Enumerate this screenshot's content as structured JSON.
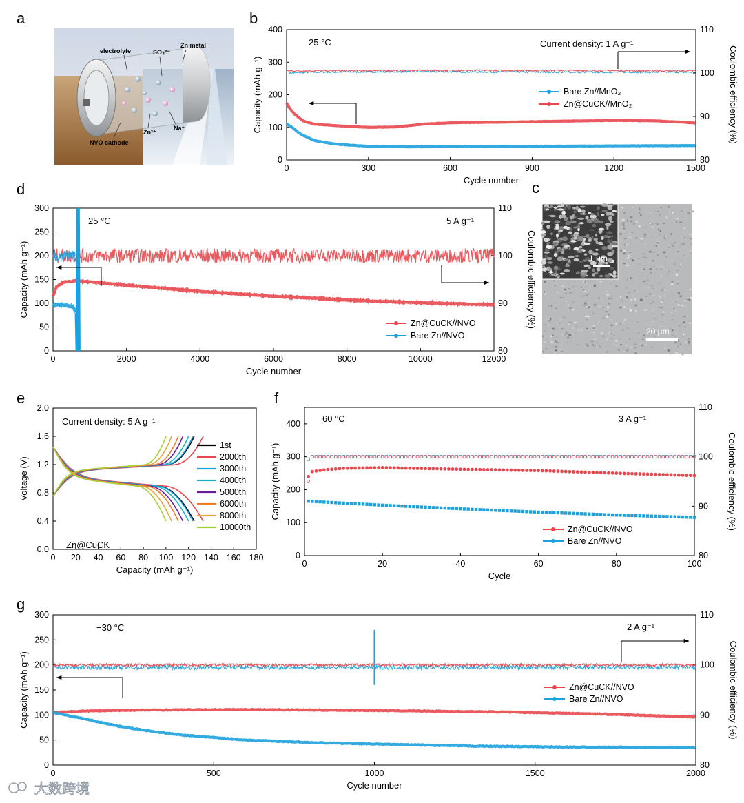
{
  "figure": {
    "panel_labels": [
      "a",
      "b",
      "c",
      "d",
      "e",
      "f",
      "g"
    ],
    "watermark": "大数跨境",
    "panel_a": {
      "labels": [
        "electrolyte",
        "SO₄²⁻",
        "Zn metal",
        "NVO cathode",
        "Zn²⁺",
        "Na⁺"
      ]
    },
    "panel_c": {
      "inset_scale": "1 μm",
      "main_scale": "20 μm"
    }
  },
  "colors": {
    "red": "#e8474d",
    "blue": "#1da1dc",
    "black": "#000000"
  },
  "chart_data": [
    {
      "id": "b",
      "type": "line",
      "panel": "b",
      "xlabel": "Cycle number",
      "ylabel": "Capacity (mAh g⁻¹)",
      "y2label": "Coulombic efficiency (%)",
      "xlim": [
        0,
        1500
      ],
      "ylim": [
        0,
        400
      ],
      "y2lim": [
        80,
        110
      ],
      "xticks": [
        0,
        300,
        600,
        900,
        1200,
        1500
      ],
      "yticks": [
        0,
        100,
        200,
        300,
        400
      ],
      "y2ticks": [
        80,
        90,
        100,
        110
      ],
      "annotations": [
        "25 °C",
        "Current density: 1 A g⁻¹"
      ],
      "legend": [
        "Bare Zn//MnO₂",
        "Zn@CuCK//MnO₂"
      ],
      "series": [
        {
          "name": "Bare Zn//MnO₂",
          "color": "blue",
          "axis": "left",
          "points": [
            [
              0,
              110
            ],
            [
              20,
              100
            ],
            [
              50,
              80
            ],
            [
              100,
              60
            ],
            [
              150,
              52
            ],
            [
              200,
              47
            ],
            [
              300,
              42
            ],
            [
              450,
              40
            ],
            [
              600,
              41
            ],
            [
              900,
              42
            ],
            [
              1200,
              43
            ],
            [
              1500,
              44
            ]
          ]
        },
        {
          "name": "Zn@CuCK//MnO₂",
          "color": "red",
          "axis": "left",
          "points": [
            [
              0,
              175
            ],
            [
              10,
              160
            ],
            [
              30,
              140
            ],
            [
              60,
              120
            ],
            [
              100,
              110
            ],
            [
              200,
              104
            ],
            [
              300,
              100
            ],
            [
              400,
              101
            ],
            [
              500,
              110
            ],
            [
              600,
              114
            ],
            [
              800,
              116
            ],
            [
              1000,
              119
            ],
            [
              1200,
              121
            ],
            [
              1350,
              120
            ],
            [
              1450,
              116
            ],
            [
              1500,
              113
            ]
          ]
        },
        {
          "name": "Bare Zn//MnO₂ CE",
          "color": "blue",
          "axis": "right",
          "points": [
            [
              10,
              100
            ],
            [
              100,
              100.2
            ],
            [
              500,
              100.3
            ],
            [
              1000,
              100.2
            ],
            [
              1500,
              100.2
            ]
          ]
        },
        {
          "name": "Zn@CuCK//MnO₂ CE",
          "color": "red",
          "axis": "right",
          "points": [
            [
              0,
              100.5
            ],
            [
              500,
              100.6
            ],
            [
              1000,
              100.6
            ],
            [
              1500,
              100.5
            ]
          ]
        }
      ]
    },
    {
      "id": "d",
      "type": "line",
      "panel": "d",
      "xlabel": "Cycle number",
      "ylabel": "Capacity (mAh g⁻¹)",
      "y2label": "Coulombic efficiency (%)",
      "xlim": [
        0,
        12000
      ],
      "ylim": [
        0,
        300
      ],
      "y2lim": [
        80,
        110
      ],
      "xticks": [
        0,
        2000,
        4000,
        6000,
        8000,
        10000,
        12000
      ],
      "yticks": [
        0,
        50,
        100,
        150,
        200,
        250,
        300
      ],
      "y2ticks": [
        80,
        90,
        100,
        110
      ],
      "annotations": [
        "25 °C",
        "5 A g⁻¹"
      ],
      "legend": [
        "Zn@CuCK//NVO",
        "Bare Zn//NVO"
      ],
      "series": [
        {
          "name": "Zn@CuCK//NVO",
          "color": "red",
          "axis": "left",
          "points": [
            [
              0,
              115
            ],
            [
              100,
              135
            ],
            [
              300,
              145
            ],
            [
              600,
              147
            ],
            [
              1000,
              145
            ],
            [
              2000,
              138
            ],
            [
              4000,
              125
            ],
            [
              6000,
              115
            ],
            [
              8000,
              107
            ],
            [
              10000,
              101
            ],
            [
              12000,
              97
            ]
          ]
        },
        {
          "name": "Bare Zn//NVO",
          "color": "blue",
          "axis": "left",
          "points": [
            [
              0,
              97
            ],
            [
              200,
              97
            ],
            [
              400,
              95
            ],
            [
              550,
              92
            ],
            [
              620,
              80
            ]
          ]
        },
        {
          "name": "Zn@CuCK//NVO CE",
          "color": "red",
          "axis": "right",
          "points": [
            [
              0,
              100
            ],
            [
              12000,
              100
            ]
          ]
        },
        {
          "name": "Bare Zn//NVO CE",
          "color": "blue",
          "axis": "right",
          "points": [
            [
              0,
              100
            ],
            [
              600,
              100
            ]
          ]
        }
      ]
    },
    {
      "id": "e",
      "type": "line",
      "panel": "e",
      "xlabel": "Capacity (mAh g⁻¹)",
      "ylabel": "Voltage (V)",
      "xlim": [
        0,
        180
      ],
      "ylim": [
        0,
        2.0
      ],
      "xticks": [
        0,
        20,
        40,
        60,
        80,
        100,
        120,
        140,
        160,
        180
      ],
      "yticks": [
        0.0,
        0.4,
        0.8,
        1.2,
        1.6,
        2.0
      ],
      "annotations": [
        "Current density: 5 A g⁻¹",
        "Zn@CuCK"
      ],
      "legend": [
        "1st",
        "2000th",
        "3000th",
        "4000th",
        "5000th",
        "6000th",
        "8000th",
        "10000th"
      ],
      "series": [
        {
          "name": "1st",
          "color": "#000000",
          "cap": 125
        },
        {
          "name": "2000th",
          "color": "#e8474d",
          "cap": 133
        },
        {
          "name": "3000th",
          "color": "#1da1dc",
          "cap": 124
        },
        {
          "name": "4000th",
          "color": "#18b2c4",
          "cap": 120
        },
        {
          "name": "5000th",
          "color": "#6a1b9a",
          "cap": 115
        },
        {
          "name": "6000th",
          "color": "#f07c2a",
          "cap": 111
        },
        {
          "name": "8000th",
          "color": "#e8a33c",
          "cap": 105
        },
        {
          "name": "10000th",
          "color": "#a7cf38",
          "cap": 100
        }
      ]
    },
    {
      "id": "f",
      "type": "scatter",
      "panel": "f",
      "xlabel": "Cycle",
      "ylabel": "Capacity (mAh g⁻¹)",
      "y2label": "Coulombic efficiency (%)",
      "xlim": [
        0,
        100
      ],
      "ylim": [
        0,
        450
      ],
      "y2lim": [
        80,
        110
      ],
      "xticks": [
        0,
        20,
        40,
        60,
        80,
        100
      ],
      "yticks": [
        0,
        100,
        200,
        300,
        400
      ],
      "y2ticks": [
        80,
        90,
        100,
        110
      ],
      "annotations": [
        "60 °C",
        "3 A g⁻¹"
      ],
      "legend": [
        "Zn@CuCK//NVO",
        "Bare Zn//NVO"
      ],
      "series": [
        {
          "name": "Zn@CuCK//NVO",
          "color": "red",
          "axis": "left",
          "points": [
            [
              1,
              240
            ],
            [
              2,
              255
            ],
            [
              5,
              260
            ],
            [
              10,
              265
            ],
            [
              20,
              267
            ],
            [
              40,
              262
            ],
            [
              60,
              258
            ],
            [
              80,
              250
            ],
            [
              100,
              243
            ]
          ]
        },
        {
          "name": "Bare Zn//NVO",
          "color": "blue",
          "axis": "left",
          "points": [
            [
              1,
              165
            ],
            [
              20,
              153
            ],
            [
              40,
              142
            ],
            [
              60,
              132
            ],
            [
              80,
              123
            ],
            [
              100,
              116
            ]
          ]
        },
        {
          "name": "Zn@CuCK//NVO CE",
          "color": "red",
          "axis": "right",
          "points": [
            [
              1,
              95
            ],
            [
              2,
              100
            ],
            [
              100,
              100
            ]
          ]
        },
        {
          "name": "Bare Zn//NVO CE",
          "color": "blue",
          "axis": "right",
          "points": [
            [
              1,
              99.5
            ],
            [
              2,
              100
            ],
            [
              100,
              100
            ]
          ]
        }
      ]
    },
    {
      "id": "g",
      "type": "line",
      "panel": "g",
      "xlabel": "Cycle number",
      "ylabel": "Capacity (mAh g⁻¹)",
      "y2label": "Coulombic efficiency (%)",
      "xlim": [
        0,
        2000
      ],
      "ylim": [
        0,
        300
      ],
      "y2lim": [
        80,
        110
      ],
      "xticks": [
        0,
        500,
        1000,
        1500,
        2000
      ],
      "yticks": [
        0,
        50,
        100,
        150,
        200,
        250,
        300
      ],
      "y2ticks": [
        80,
        90,
        100,
        110
      ],
      "annotations": [
        "−30 °C",
        "2 A g⁻¹"
      ],
      "legend": [
        "Zn@CuCK//NVO",
        "Bare Zn//NVO"
      ],
      "series": [
        {
          "name": "Zn@CuCK//NVO",
          "color": "red",
          "axis": "left",
          "points": [
            [
              0,
              105
            ],
            [
              100,
              108
            ],
            [
              300,
              110
            ],
            [
              600,
              111
            ],
            [
              1000,
              109
            ],
            [
              1400,
              106
            ],
            [
              1700,
              102
            ],
            [
              2000,
              96
            ]
          ]
        },
        {
          "name": "Bare Zn//NVO",
          "color": "blue",
          "axis": "left",
          "points": [
            [
              0,
              105
            ],
            [
              100,
              92
            ],
            [
              200,
              78
            ],
            [
              300,
              68
            ],
            [
              400,
              60
            ],
            [
              600,
              50
            ],
            [
              800,
              45
            ],
            [
              1000,
              42
            ],
            [
              1300,
              38
            ],
            [
              1600,
              36
            ],
            [
              2000,
              35
            ]
          ]
        },
        {
          "name": "Zn@CuCK//NVO CE",
          "color": "red",
          "axis": "right",
          "points": [
            [
              0,
              100
            ],
            [
              2000,
              100
            ]
          ]
        },
        {
          "name": "Bare Zn//NVO CE",
          "color": "blue",
          "axis": "right",
          "points": [
            [
              0,
              99.5
            ],
            [
              2000,
              99.5
            ]
          ]
        }
      ]
    }
  ]
}
